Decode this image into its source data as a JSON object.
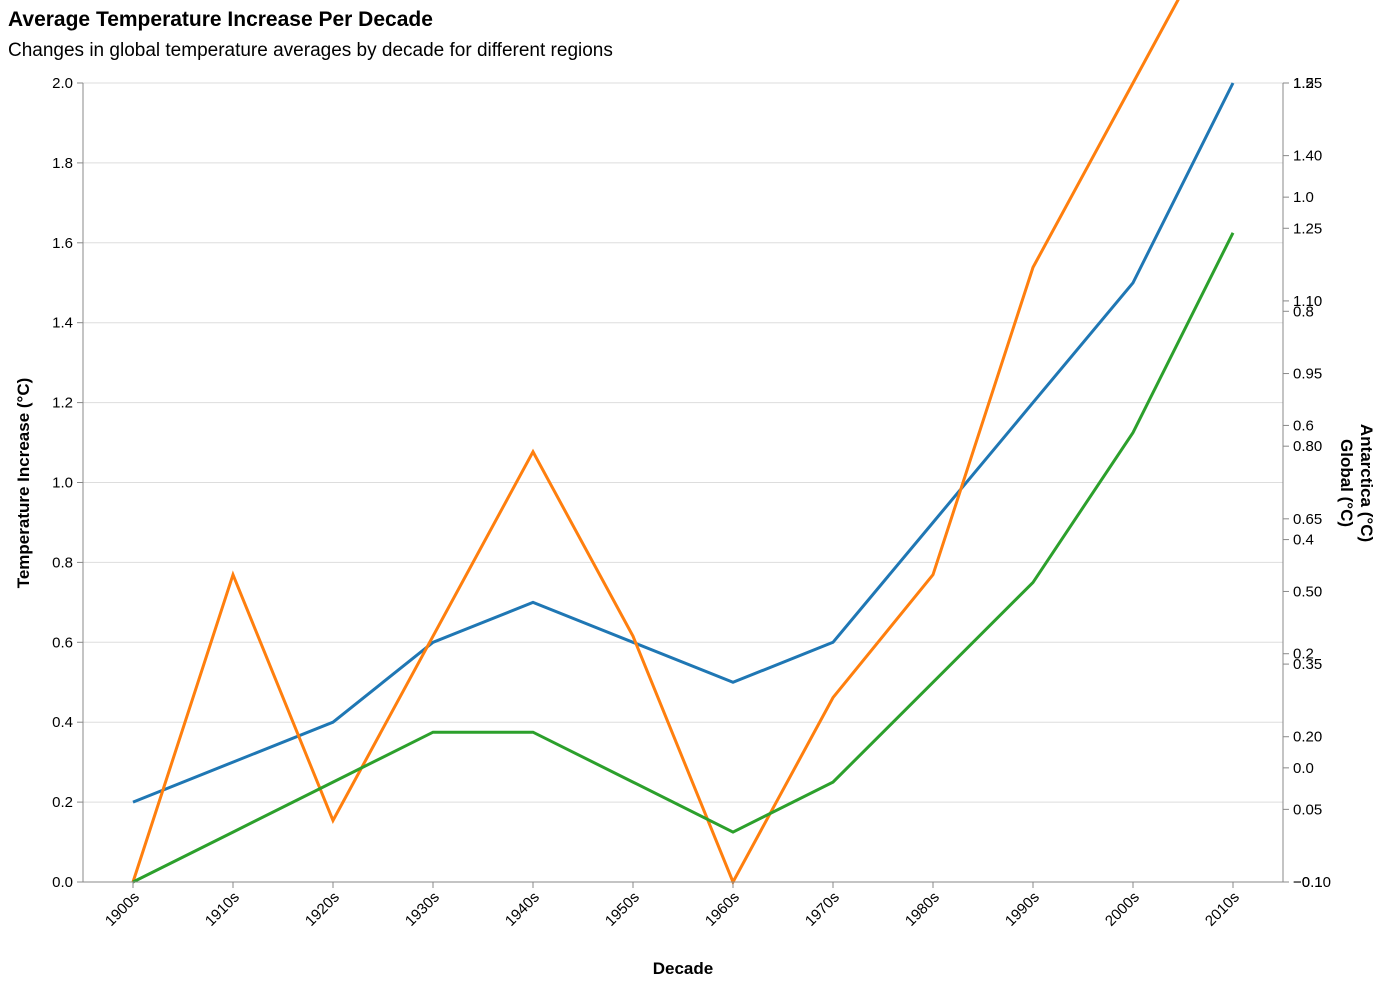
{
  "chart_data": {
    "type": "line",
    "title": "Average Temperature Increase Per Decade",
    "subtitle": "Changes in global temperature averages by decade for different regions",
    "xlabel": "Decade",
    "ylabel": "Temperature Increase (°C)",
    "ylabel_right_1": "Antarctica (°C)",
    "ylabel_right_2": "Global (°C)",
    "categories": [
      "1900s",
      "1910s",
      "1920s",
      "1930s",
      "1940s",
      "1950s",
      "1960s",
      "1970s",
      "1980s",
      "1990s",
      "2000s",
      "2010s"
    ],
    "ylim": [
      0,
      2.0
    ],
    "yticks": [
      "0.0",
      "0.2",
      "0.4",
      "0.6",
      "0.8",
      "1.0",
      "1.2",
      "1.4",
      "1.6",
      "1.8",
      "2.0"
    ],
    "right_axis_1": {
      "ylim": [
        -0.1,
        1.2
      ],
      "ticks": [
        "−0.1",
        "0.0",
        "0.2",
        "0.4",
        "0.6",
        "0.8",
        "1.0",
        "1.2"
      ]
    },
    "right_axis_2": {
      "ylim": [
        -0.1,
        1.5
      ],
      "ticks": [
        "−0.10",
        "0.05",
        "0.20",
        "0.35",
        "0.50",
        "0.65",
        "0.80",
        "0.95",
        "1.10",
        "1.25",
        "1.40",
        "1.55"
      ]
    },
    "series": [
      {
        "color": "#1f77b4",
        "axis": "left",
        "values": [
          0.2,
          0.3,
          0.4,
          0.6,
          0.7,
          0.6,
          0.5,
          0.6,
          0.9,
          1.2,
          1.5,
          2.0
        ]
      },
      {
        "color": "#ff7f0e",
        "axis": "right_axis_1",
        "values": [
          -0.1,
          0.4,
          0.0,
          0.3,
          0.6,
          0.3,
          -0.1,
          0.2,
          0.4,
          0.9,
          1.2,
          1.5
        ]
      },
      {
        "color": "#2ca02c",
        "axis": "right_axis_2",
        "values": [
          -0.1,
          0.0,
          0.1,
          0.2,
          0.2,
          0.1,
          0.0,
          0.1,
          0.3,
          0.5,
          0.8,
          1.2
        ]
      }
    ],
    "grid": true
  }
}
